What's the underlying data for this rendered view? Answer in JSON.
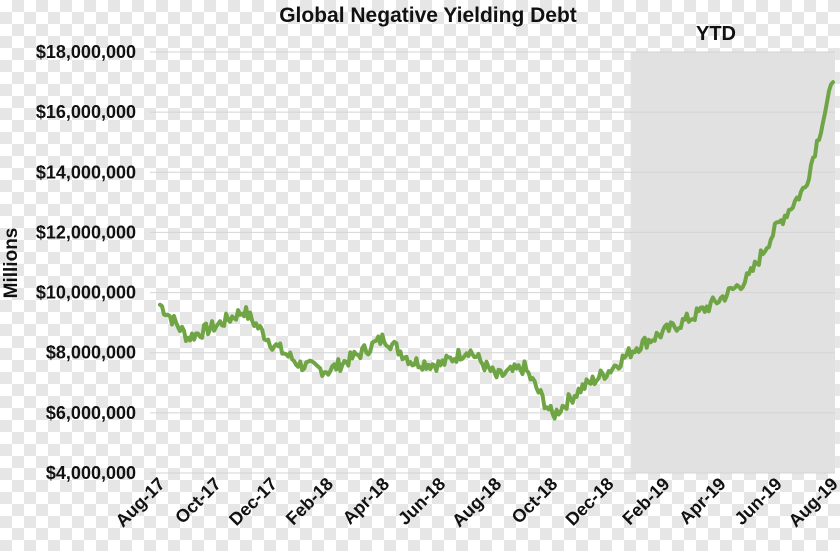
{
  "chart_data": {
    "type": "line",
    "title": "Global Negative Yielding Debt",
    "ylabel": "Millions",
    "xlabel": "",
    "ylim": [
      4000000,
      18000000
    ],
    "yticks": [
      "$4,000,000",
      "$6,000,000",
      "$8,000,000",
      "$10,000,000",
      "$12,000,000",
      "$14,000,000",
      "$16,000,000",
      "$18,000,000"
    ],
    "ytick_values": [
      4000000,
      6000000,
      8000000,
      10000000,
      12000000,
      14000000,
      16000000,
      18000000
    ],
    "xticks": [
      "Aug-17",
      "Oct-17",
      "Dec-17",
      "Feb-18",
      "Apr-18",
      "Jun-18",
      "Aug-18",
      "Oct-18",
      "Dec-18",
      "Feb-19",
      "Apr-19",
      "Jun-19",
      "Aug-19"
    ],
    "shaded_region": {
      "label": "YTD",
      "from": "Jan-19",
      "to": "Aug-19",
      "color": "#e1e1e1"
    },
    "grid": "horizontal",
    "line_color": "#6fa544",
    "series": [
      {
        "x": [
          "Aug-17",
          "Sep-17",
          "Oct-17",
          "Nov-17",
          "Dec-17",
          "Jan-18",
          "Feb-18",
          "Mar-18",
          "Apr-18",
          "May-18",
          "Jun-18",
          "Jul-18",
          "Aug-18",
          "Sep-18",
          "Oct-18",
          "Nov-18",
          "Dec-18",
          "Jan-19",
          "Feb-19",
          "Mar-19",
          "Apr-19",
          "May-19",
          "Jun-19",
          "Jul-19",
          "Aug-19"
        ],
        "values": [
          9600000,
          8500000,
          8900000,
          9400000,
          8300000,
          7600000,
          7400000,
          7900000,
          8500000,
          7700000,
          7600000,
          8100000,
          7200000,
          7500000,
          5900000,
          6800000,
          7400000,
          8200000,
          8700000,
          9200000,
          9800000,
          10500000,
          12200000,
          13500000,
          17000000
        ]
      }
    ]
  }
}
